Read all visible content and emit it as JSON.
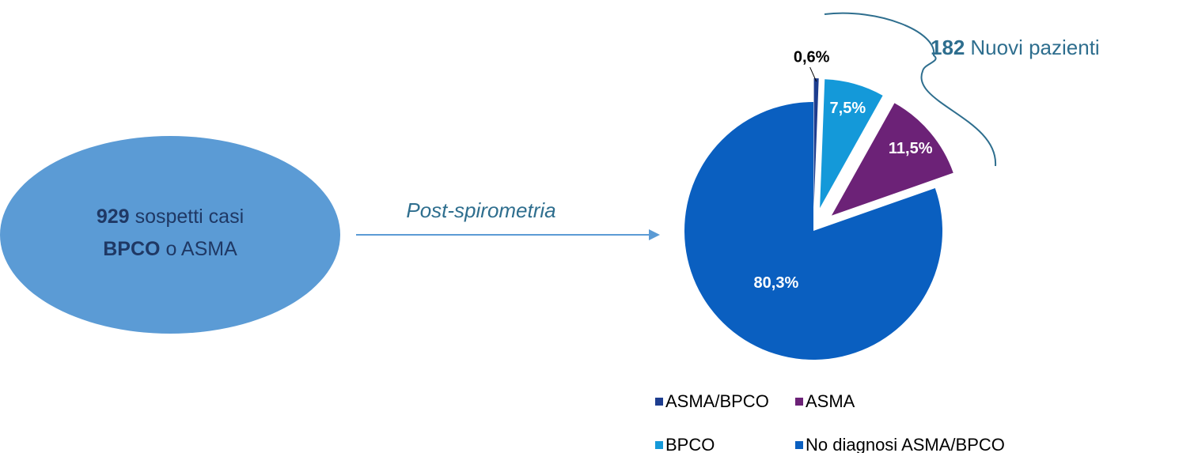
{
  "chart_data": {
    "type": "pie",
    "categories": [
      "ASMA/BPCO",
      "BPCO",
      "ASMA",
      "No diagnosi ASMA/BPCO"
    ],
    "values": [
      0.6,
      7.5,
      11.5,
      80.3
    ],
    "value_labels": [
      "0,6%",
      "7,5%",
      "11,5%",
      "80,3%"
    ],
    "colors": [
      "#1d3d8f",
      "#1499d9",
      "#6c2277",
      "#0a5fc0"
    ],
    "legend": "bottom",
    "annotations": {
      "ellipse": [
        [
          {
            "text": "929",
            "bold": true
          },
          {
            "text": "sospetti casi"
          }
        ],
        [
          {
            "text": "BPCO",
            "bold": true
          },
          {
            "text": "o ASMA"
          }
        ]
      ],
      "arrow": "Post-spirometria",
      "brace": [
        {
          "text": "182",
          "bold": true
        },
        {
          "text": "Nuovi pazienti"
        }
      ]
    }
  }
}
